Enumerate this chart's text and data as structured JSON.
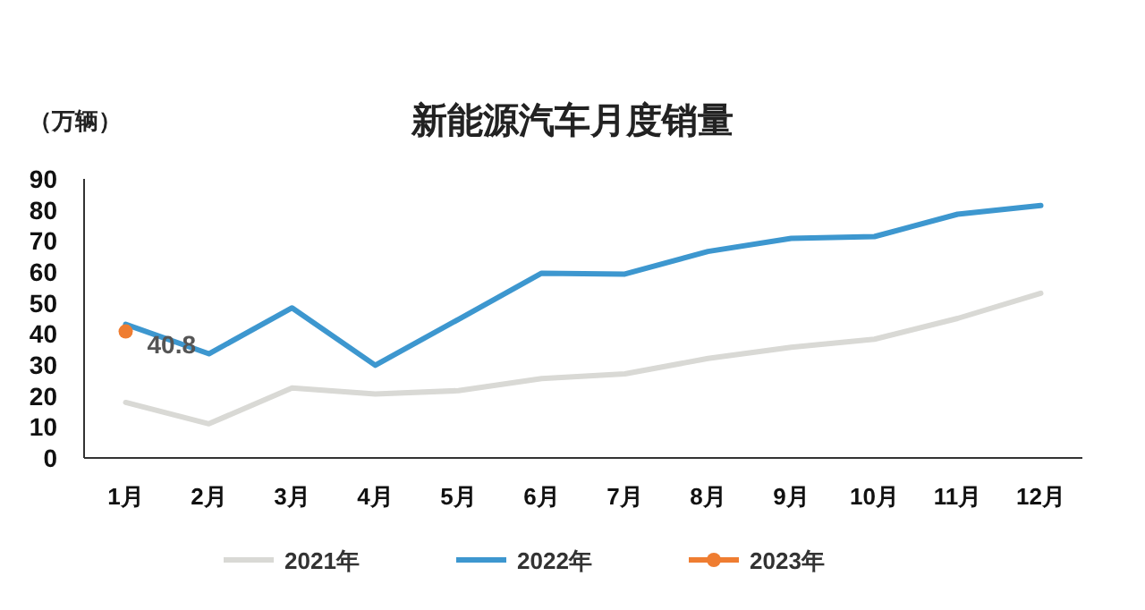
{
  "chart_data": {
    "type": "line",
    "title": "新能源汽车月度销量",
    "ylabel": "（万辆）",
    "categories": [
      "1月",
      "2月",
      "3月",
      "4月",
      "5月",
      "6月",
      "7月",
      "8月",
      "9月",
      "10月",
      "11月",
      "12月"
    ],
    "series": [
      {
        "name": "2021年",
        "color": "#d9d9d5",
        "values": [
          17.9,
          11.0,
          22.6,
          20.6,
          21.7,
          25.6,
          27.1,
          32.1,
          35.7,
          38.3,
          45.0,
          53.1
        ]
      },
      {
        "name": "2022年",
        "color": "#3d97cf",
        "values": [
          43.1,
          33.6,
          48.4,
          29.9,
          44.7,
          59.6,
          59.3,
          66.6,
          70.8,
          71.4,
          78.6,
          81.4
        ]
      },
      {
        "name": "2023年",
        "color": "#ef7d31",
        "marker": "circle",
        "value_labels": [
          "40.8",
          null,
          null,
          null,
          null,
          null,
          null,
          null,
          null,
          null,
          null,
          null
        ],
        "values": [
          40.8,
          null,
          null,
          null,
          null,
          null,
          null,
          null,
          null,
          null,
          null,
          null
        ]
      }
    ],
    "ylim": [
      0,
      90
    ],
    "yticks": [
      0,
      10,
      20,
      30,
      40,
      50,
      60,
      70,
      80,
      90
    ],
    "grid": false,
    "legend": "bottom"
  }
}
